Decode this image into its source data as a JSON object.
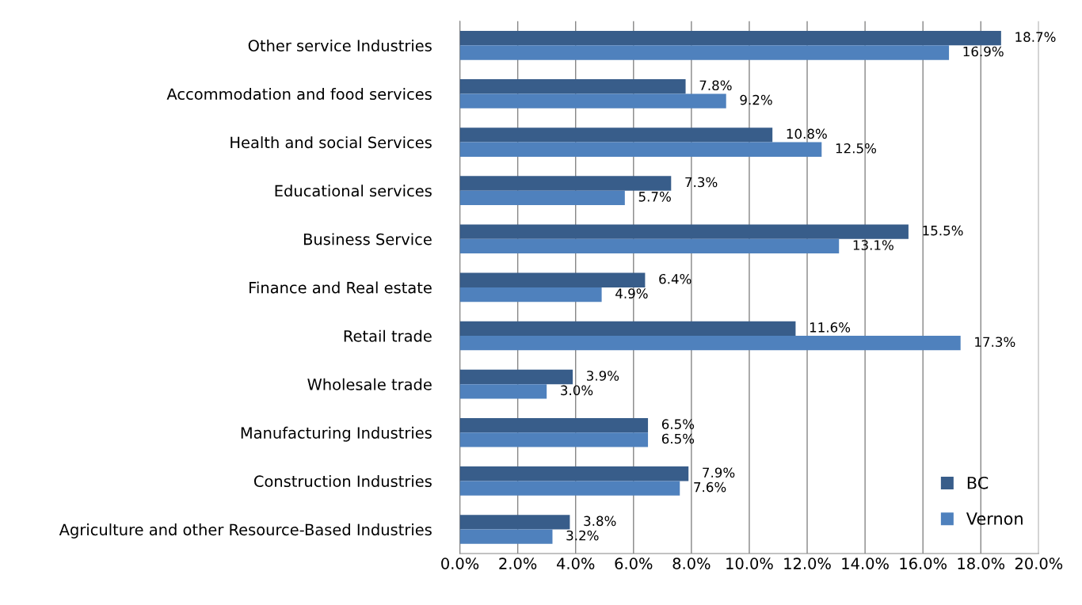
{
  "chart_data": {
    "type": "bar",
    "orientation": "horizontal",
    "categories": [
      "Other service Industries",
      "Accommodation and food services",
      "Health and social Services",
      "Educational services",
      "Business Service",
      "Finance and Real estate",
      "Retail trade",
      "Wholesale trade",
      "Manufacturing Industries",
      "Construction Industries",
      "Agriculture and other Resource-Based Industries"
    ],
    "series": [
      {
        "name": "BC",
        "color": "#385d8a",
        "values": [
          18.7,
          7.8,
          10.8,
          7.3,
          15.5,
          6.4,
          11.6,
          3.9,
          6.5,
          7.9,
          3.8
        ],
        "value_labels": [
          "18.7%",
          "7.8%",
          "10.8%",
          "7.3%",
          "15.5%",
          "6.4%",
          "11.6%",
          "3.9%",
          "6.5%",
          "7.9%",
          "3.8%"
        ]
      },
      {
        "name": "Vernon",
        "color": "#4f81bd",
        "values": [
          16.9,
          9.2,
          12.5,
          5.7,
          13.1,
          4.9,
          17.3,
          3.0,
          6.5,
          7.6,
          3.2
        ],
        "value_labels": [
          "16.9%",
          "9.2%",
          "12.5%",
          "5.7%",
          "13.1%",
          "4.9%",
          "17.3%",
          "3.0%",
          "6.5%",
          "7.6%",
          "3.2%"
        ]
      }
    ],
    "xlim": [
      0,
      20
    ],
    "xticks": [
      {
        "value": 0,
        "label": "0.0%"
      },
      {
        "value": 2,
        "label": "2.0%"
      },
      {
        "value": 4,
        "label": "4.0%"
      },
      {
        "value": 6,
        "label": "6.0%"
      },
      {
        "value": 8,
        "label": "8.0%"
      },
      {
        "value": 10,
        "label": "10.0%"
      },
      {
        "value": 12,
        "label": "12.0%"
      },
      {
        "value": 14,
        "label": "14.0%"
      },
      {
        "value": 16,
        "label": "16.0%"
      },
      {
        "value": 18,
        "label": "18.0%"
      },
      {
        "value": 20,
        "label": "20.0%"
      }
    ],
    "grid": "x",
    "legend": "bottom right"
  }
}
